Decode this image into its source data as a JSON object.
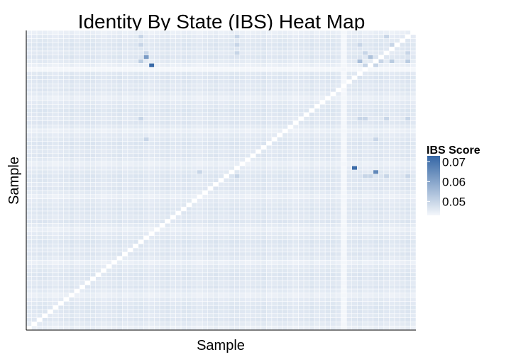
{
  "chart_data": {
    "type": "heatmap",
    "title": "Identity By State (IBS) Heat Map",
    "xlabel": "Sample",
    "ylabel": "Sample",
    "n_samples": 73,
    "value_range": [
      0.04,
      0.075
    ],
    "base_value": 0.045,
    "diagonal_value": null,
    "empty_sample_index": 59,
    "empty_sample_value": 0.041,
    "row_band_offsets": [
      -0.001,
      0.0002,
      0.0006,
      0.0012,
      0.0009,
      0.0004,
      0.0011,
      0.0001
    ],
    "col_band_offsets": [
      0.0002,
      0.0004,
      0.0008,
      0.0008,
      0.0004,
      0.0,
      0.0004,
      0.0006,
      0.001
    ],
    "highlight_cells": [
      {
        "row": 5,
        "col": 22,
        "value": 0.05
      },
      {
        "row": 3,
        "col": 21,
        "value": 0.05
      },
      {
        "row": 3,
        "col": 39,
        "value": 0.05
      },
      {
        "row": 3,
        "col": 62,
        "value": 0.05
      },
      {
        "row": 3,
        "col": 68,
        "value": 0.05
      },
      {
        "row": 5,
        "col": 39,
        "value": 0.05
      },
      {
        "row": 5,
        "col": 63,
        "value": 0.05
      },
      {
        "row": 5,
        "col": 67,
        "value": 0.05
      },
      {
        "row": 5,
        "col": 71,
        "value": 0.05
      },
      {
        "row": 6,
        "col": 22,
        "value": 0.062
      },
      {
        "row": 6,
        "col": 64,
        "value": 0.054
      },
      {
        "row": 7,
        "col": 21,
        "value": 0.052
      },
      {
        "row": 7,
        "col": 62,
        "value": 0.055
      },
      {
        "row": 7,
        "col": 66,
        "value": 0.05
      },
      {
        "row": 7,
        "col": 68,
        "value": 0.052
      },
      {
        "row": 7,
        "col": 71,
        "value": 0.052
      },
      {
        "row": 8,
        "col": 23,
        "value": 0.072
      },
      {
        "row": 8,
        "col": 63,
        "value": 0.05
      },
      {
        "row": 8,
        "col": 65,
        "value": 0.05
      },
      {
        "row": 21,
        "col": 21,
        "value": 0.05
      },
      {
        "row": 21,
        "col": 62,
        "value": 0.05
      },
      {
        "row": 21,
        "col": 63,
        "value": 0.05
      },
      {
        "row": 21,
        "col": 67,
        "value": 0.05
      },
      {
        "row": 21,
        "col": 71,
        "value": 0.05
      },
      {
        "row": 26,
        "col": 22,
        "value": 0.05
      },
      {
        "row": 26,
        "col": 65,
        "value": 0.05
      },
      {
        "row": 33,
        "col": 61,
        "value": 0.072
      },
      {
        "row": 34,
        "col": 65,
        "value": 0.066
      },
      {
        "row": 34,
        "col": 32,
        "value": 0.05
      },
      {
        "row": 35,
        "col": 39,
        "value": 0.05
      },
      {
        "row": 35,
        "col": 63,
        "value": 0.05
      },
      {
        "row": 35,
        "col": 64,
        "value": 0.05
      },
      {
        "row": 35,
        "col": 67,
        "value": 0.05
      },
      {
        "row": 35,
        "col": 71,
        "value": 0.05
      },
      {
        "row": 1,
        "col": 21,
        "value": 0.05
      },
      {
        "row": 1,
        "col": 39,
        "value": 0.05
      },
      {
        "row": 1,
        "col": 67,
        "value": 0.05
      }
    ],
    "legend": {
      "title": "IBS Score",
      "ticks": [
        {
          "value": 0.07,
          "label": "0.07"
        },
        {
          "value": 0.06,
          "label": "0.06"
        },
        {
          "value": 0.05,
          "label": "0.05"
        }
      ],
      "range": [
        0.043,
        0.073
      ]
    },
    "colors": {
      "low": "#f4f7fb",
      "high": "#3466a5",
      "diagonal": "#ffffff",
      "grid": "#ffffff"
    },
    "grid": true
  }
}
